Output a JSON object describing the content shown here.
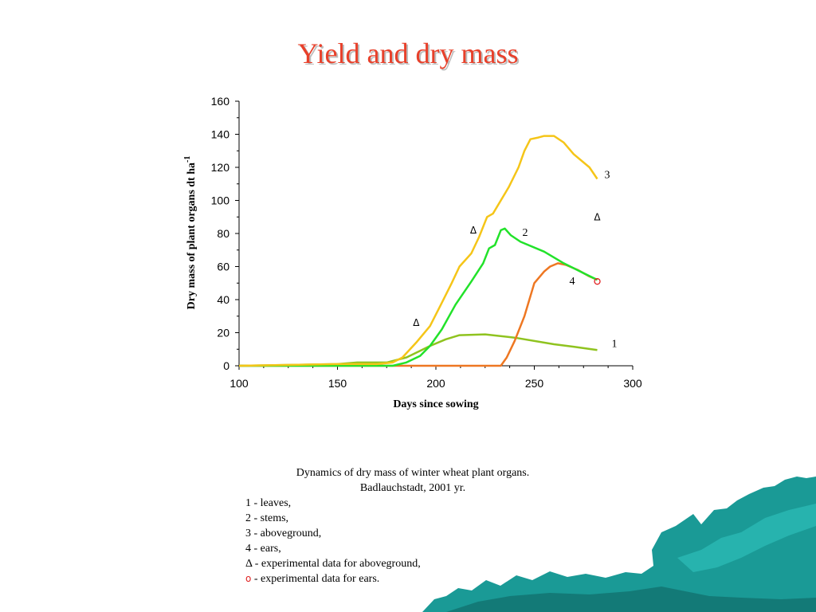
{
  "slide": {
    "title": "Yield and dry mass"
  },
  "chart_data": {
    "type": "line",
    "title": "",
    "xlabel": "Days since sowing",
    "ylabel": "Dry mass of plant organs dt ha",
    "ylabel_superscript": "-1",
    "xlim": [
      100,
      300
    ],
    "ylim": [
      0,
      160
    ],
    "xticks": [
      100,
      150,
      200,
      250,
      300
    ],
    "yticks": [
      0,
      20,
      40,
      60,
      80,
      100,
      120,
      140,
      160
    ],
    "grid": false,
    "series": [
      {
        "label": "1",
        "color": "#8fc31f",
        "points": [
          [
            100,
            0
          ],
          [
            150,
            1
          ],
          [
            160,
            2
          ],
          [
            175,
            2
          ],
          [
            185,
            5
          ],
          [
            192,
            9
          ],
          [
            197,
            12
          ],
          [
            205,
            16
          ],
          [
            212,
            18.5
          ],
          [
            225,
            19
          ],
          [
            240,
            17
          ],
          [
            260,
            13
          ],
          [
            270,
            11.5
          ],
          [
            282,
            9.5
          ]
        ]
      },
      {
        "label": "2",
        "color": "#22e22a",
        "points": [
          [
            100,
            0
          ],
          [
            178,
            0
          ],
          [
            185,
            2
          ],
          [
            192,
            6
          ],
          [
            197,
            12
          ],
          [
            203,
            22
          ],
          [
            210,
            37
          ],
          [
            218,
            51
          ],
          [
            224,
            62
          ],
          [
            227,
            71
          ],
          [
            230,
            73
          ],
          [
            233,
            82
          ],
          [
            235,
            83
          ],
          [
            238,
            79
          ],
          [
            243,
            75
          ],
          [
            255,
            69
          ],
          [
            265,
            62
          ],
          [
            275,
            56
          ],
          [
            282,
            52
          ]
        ]
      },
      {
        "label": "3",
        "color": "#f5c518",
        "points": [
          [
            100,
            0
          ],
          [
            150,
            1
          ],
          [
            170,
            1
          ],
          [
            178,
            2
          ],
          [
            183,
            5
          ],
          [
            190,
            14
          ],
          [
            197,
            24
          ],
          [
            203,
            38
          ],
          [
            208,
            50
          ],
          [
            212,
            60
          ],
          [
            218,
            68
          ],
          [
            222,
            78
          ],
          [
            226,
            90
          ],
          [
            229,
            92
          ],
          [
            233,
            100
          ],
          [
            237,
            108
          ],
          [
            242,
            120
          ],
          [
            245,
            130
          ],
          [
            248,
            137
          ],
          [
            252,
            138
          ],
          [
            255,
            139
          ],
          [
            260,
            139
          ],
          [
            265,
            135
          ],
          [
            270,
            128
          ],
          [
            278,
            120
          ],
          [
            282,
            113
          ]
        ]
      },
      {
        "label": "4",
        "color": "#ee7722",
        "points": [
          [
            100,
            0
          ],
          [
            233,
            0
          ],
          [
            236,
            5
          ],
          [
            240,
            15
          ],
          [
            245,
            30
          ],
          [
            250,
            50
          ],
          [
            255,
            57
          ],
          [
            258,
            60
          ],
          [
            262,
            62
          ],
          [
            266,
            61
          ],
          [
            272,
            58
          ],
          [
            278,
            54
          ],
          [
            282,
            52
          ]
        ]
      }
    ],
    "experimental_aboveground": [
      [
        190,
        26
      ],
      [
        219,
        82
      ],
      [
        282,
        90
      ]
    ],
    "experimental_ears": [
      [
        282,
        51
      ]
    ],
    "caption": {
      "title_line1": "Dynamics of dry mass of winter wheat plant organs.",
      "title_line2": "Badlauchstadt, 2001 yr.",
      "items": [
        "1 - leaves,",
        "2 - stems,",
        "3 - aboveground,",
        "4 - ears,"
      ],
      "triangle_symbol": "Δ",
      "triangle_text": " - experimental data for aboveground,",
      "ring_symbol": "o",
      "ring_text": " - experimental data for ears."
    }
  },
  "colors": {
    "title": "#e8402a",
    "decoration": "#1a9a96"
  }
}
